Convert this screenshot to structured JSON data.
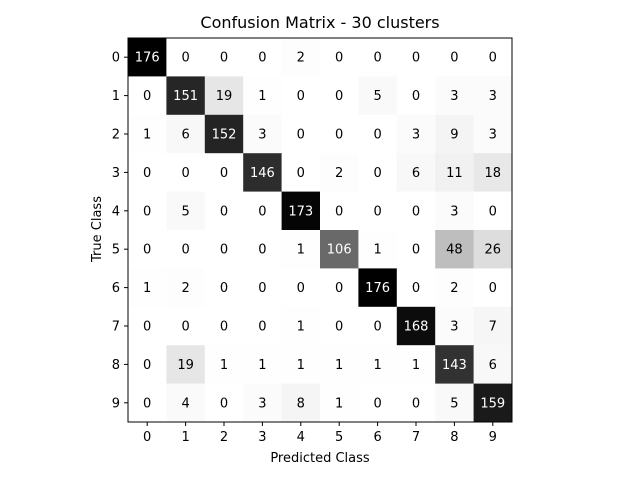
{
  "chart_data": {
    "type": "heatmap",
    "title": "Confusion Matrix - 30 clusters",
    "xlabel": "Predicted Class",
    "ylabel": "True Class",
    "x_categories": [
      "0",
      "1",
      "2",
      "3",
      "4",
      "5",
      "6",
      "7",
      "8",
      "9"
    ],
    "y_categories": [
      "0",
      "1",
      "2",
      "3",
      "4",
      "5",
      "6",
      "7",
      "8",
      "9"
    ],
    "colormap": "greys",
    "matrix": [
      [
        176,
        0,
        0,
        0,
        2,
        0,
        0,
        0,
        0,
        0
      ],
      [
        0,
        151,
        19,
        1,
        0,
        0,
        5,
        0,
        3,
        3
      ],
      [
        1,
        6,
        152,
        3,
        0,
        0,
        0,
        3,
        9,
        3
      ],
      [
        0,
        0,
        0,
        146,
        0,
        2,
        0,
        6,
        11,
        18
      ],
      [
        0,
        5,
        0,
        0,
        173,
        0,
        0,
        0,
        3,
        0
      ],
      [
        0,
        0,
        0,
        0,
        1,
        106,
        1,
        0,
        48,
        26
      ],
      [
        1,
        2,
        0,
        0,
        0,
        0,
        176,
        0,
        2,
        0
      ],
      [
        0,
        0,
        0,
        0,
        1,
        0,
        0,
        168,
        3,
        7
      ],
      [
        0,
        19,
        1,
        1,
        1,
        1,
        1,
        1,
        143,
        6
      ],
      [
        0,
        4,
        0,
        3,
        8,
        1,
        0,
        0,
        5,
        159
      ]
    ]
  }
}
